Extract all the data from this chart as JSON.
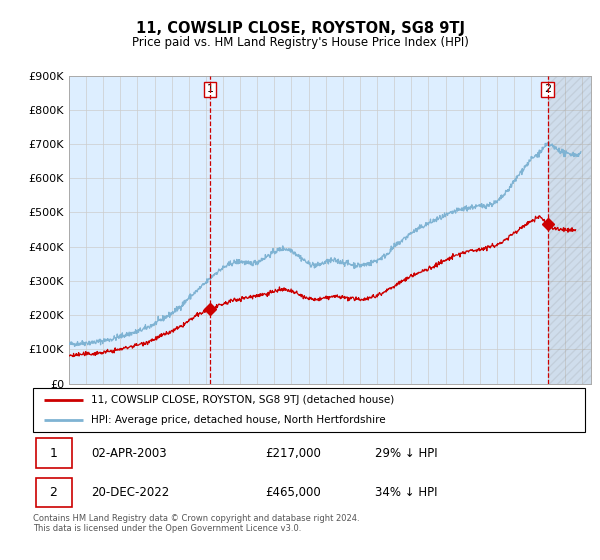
{
  "title": "11, COWSLIP CLOSE, ROYSTON, SG8 9TJ",
  "subtitle": "Price paid vs. HM Land Registry's House Price Index (HPI)",
  "legend_label_red": "11, COWSLIP CLOSE, ROYSTON, SG8 9TJ (detached house)",
  "legend_label_blue": "HPI: Average price, detached house, North Hertfordshire",
  "annotation1_label": "1",
  "annotation1_date": "02-APR-2003",
  "annotation1_price": "£217,000",
  "annotation1_hpi": "29% ↓ HPI",
  "annotation2_label": "2",
  "annotation2_date": "20-DEC-2022",
  "annotation2_price": "£465,000",
  "annotation2_hpi": "34% ↓ HPI",
  "footnote": "Contains HM Land Registry data © Crown copyright and database right 2024.\nThis data is licensed under the Open Government Licence v3.0.",
  "color_red": "#cc0000",
  "color_blue": "#7fb3d3",
  "color_dashed": "#cc0000",
  "bg_color": "#ddeeff",
  "ylim_min": 0,
  "ylim_max": 900000,
  "yticks": [
    0,
    100000,
    200000,
    300000,
    400000,
    500000,
    600000,
    700000,
    800000,
    900000
  ],
  "ytick_labels": [
    "£0",
    "£100K",
    "£200K",
    "£300K",
    "£400K",
    "£500K",
    "£600K",
    "£700K",
    "£800K",
    "£900K"
  ],
  "marker1_x": 2003.25,
  "marker1_y": 217000,
  "marker2_x": 2022.97,
  "marker2_y": 465000,
  "vline1_x": 2003.25,
  "vline2_x": 2022.97,
  "xmin": 1995.0,
  "xmax": 2025.5,
  "hpi_anchors": [
    [
      1995.0,
      115000
    ],
    [
      1995.5,
      117000
    ],
    [
      1996.0,
      119000
    ],
    [
      1996.5,
      121000
    ],
    [
      1997.0,
      125000
    ],
    [
      1997.5,
      130000
    ],
    [
      1998.0,
      138000
    ],
    [
      1998.5,
      145000
    ],
    [
      1999.0,
      152000
    ],
    [
      1999.5,
      162000
    ],
    [
      2000.0,
      175000
    ],
    [
      2000.5,
      190000
    ],
    [
      2001.0,
      205000
    ],
    [
      2001.5,
      225000
    ],
    [
      2002.0,
      250000
    ],
    [
      2002.5,
      272000
    ],
    [
      2003.0,
      295000
    ],
    [
      2003.5,
      320000
    ],
    [
      2004.0,
      338000
    ],
    [
      2004.5,
      352000
    ],
    [
      2005.0,
      358000
    ],
    [
      2005.5,
      350000
    ],
    [
      2006.0,
      355000
    ],
    [
      2006.5,
      370000
    ],
    [
      2007.0,
      385000
    ],
    [
      2007.5,
      395000
    ],
    [
      2008.0,
      390000
    ],
    [
      2008.5,
      370000
    ],
    [
      2009.0,
      350000
    ],
    [
      2009.5,
      345000
    ],
    [
      2010.0,
      355000
    ],
    [
      2010.5,
      360000
    ],
    [
      2011.0,
      355000
    ],
    [
      2011.5,
      348000
    ],
    [
      2012.0,
      345000
    ],
    [
      2012.5,
      350000
    ],
    [
      2013.0,
      360000
    ],
    [
      2013.5,
      375000
    ],
    [
      2014.0,
      400000
    ],
    [
      2014.5,
      420000
    ],
    [
      2015.0,
      440000
    ],
    [
      2015.5,
      455000
    ],
    [
      2016.0,
      468000
    ],
    [
      2016.5,
      480000
    ],
    [
      2017.0,
      490000
    ],
    [
      2017.5,
      502000
    ],
    [
      2018.0,
      510000
    ],
    [
      2018.5,
      515000
    ],
    [
      2019.0,
      518000
    ],
    [
      2019.5,
      522000
    ],
    [
      2020.0,
      530000
    ],
    [
      2020.5,
      555000
    ],
    [
      2021.0,
      590000
    ],
    [
      2021.5,
      625000
    ],
    [
      2022.0,
      655000
    ],
    [
      2022.5,
      675000
    ],
    [
      2022.97,
      700000
    ],
    [
      2023.2,
      695000
    ],
    [
      2023.5,
      685000
    ],
    [
      2023.8,
      678000
    ],
    [
      2024.0,
      670000
    ],
    [
      2024.3,
      672000
    ],
    [
      2024.6,
      668000
    ],
    [
      2024.9,
      672000
    ]
  ],
  "red_anchors": [
    [
      1995.0,
      82000
    ],
    [
      1995.5,
      84000
    ],
    [
      1996.0,
      86000
    ],
    [
      1996.5,
      88000
    ],
    [
      1997.0,
      91000
    ],
    [
      1997.5,
      95000
    ],
    [
      1998.0,
      100000
    ],
    [
      1998.5,
      107000
    ],
    [
      1999.0,
      113000
    ],
    [
      1999.5,
      120000
    ],
    [
      2000.0,
      130000
    ],
    [
      2000.5,
      142000
    ],
    [
      2001.0,
      152000
    ],
    [
      2001.5,
      165000
    ],
    [
      2002.0,
      183000
    ],
    [
      2002.5,
      200000
    ],
    [
      2003.0,
      213000
    ],
    [
      2003.25,
      217000
    ],
    [
      2003.5,
      220000
    ],
    [
      2004.0,
      232000
    ],
    [
      2004.5,
      242000
    ],
    [
      2005.0,
      248000
    ],
    [
      2005.5,
      252000
    ],
    [
      2006.0,
      258000
    ],
    [
      2006.5,
      262000
    ],
    [
      2007.0,
      270000
    ],
    [
      2007.5,
      275000
    ],
    [
      2008.0,
      270000
    ],
    [
      2008.5,
      258000
    ],
    [
      2009.0,
      248000
    ],
    [
      2009.5,
      245000
    ],
    [
      2010.0,
      250000
    ],
    [
      2010.5,
      255000
    ],
    [
      2011.0,
      252000
    ],
    [
      2011.5,
      248000
    ],
    [
      2012.0,
      246000
    ],
    [
      2012.5,
      250000
    ],
    [
      2013.0,
      258000
    ],
    [
      2013.5,
      270000
    ],
    [
      2014.0,
      285000
    ],
    [
      2014.5,
      300000
    ],
    [
      2015.0,
      315000
    ],
    [
      2015.5,
      325000
    ],
    [
      2016.0,
      335000
    ],
    [
      2016.5,
      348000
    ],
    [
      2017.0,
      360000
    ],
    [
      2017.5,
      372000
    ],
    [
      2018.0,
      382000
    ],
    [
      2018.5,
      388000
    ],
    [
      2019.0,
      393000
    ],
    [
      2019.5,
      398000
    ],
    [
      2020.0,
      405000
    ],
    [
      2020.5,
      420000
    ],
    [
      2021.0,
      440000
    ],
    [
      2021.5,
      458000
    ],
    [
      2022.0,
      475000
    ],
    [
      2022.5,
      488000
    ],
    [
      2022.97,
      465000
    ],
    [
      2023.2,
      455000
    ],
    [
      2023.5,
      452000
    ],
    [
      2023.8,
      450000
    ],
    [
      2024.0,
      448000
    ],
    [
      2024.3,
      450000
    ],
    [
      2024.6,
      448000
    ]
  ]
}
